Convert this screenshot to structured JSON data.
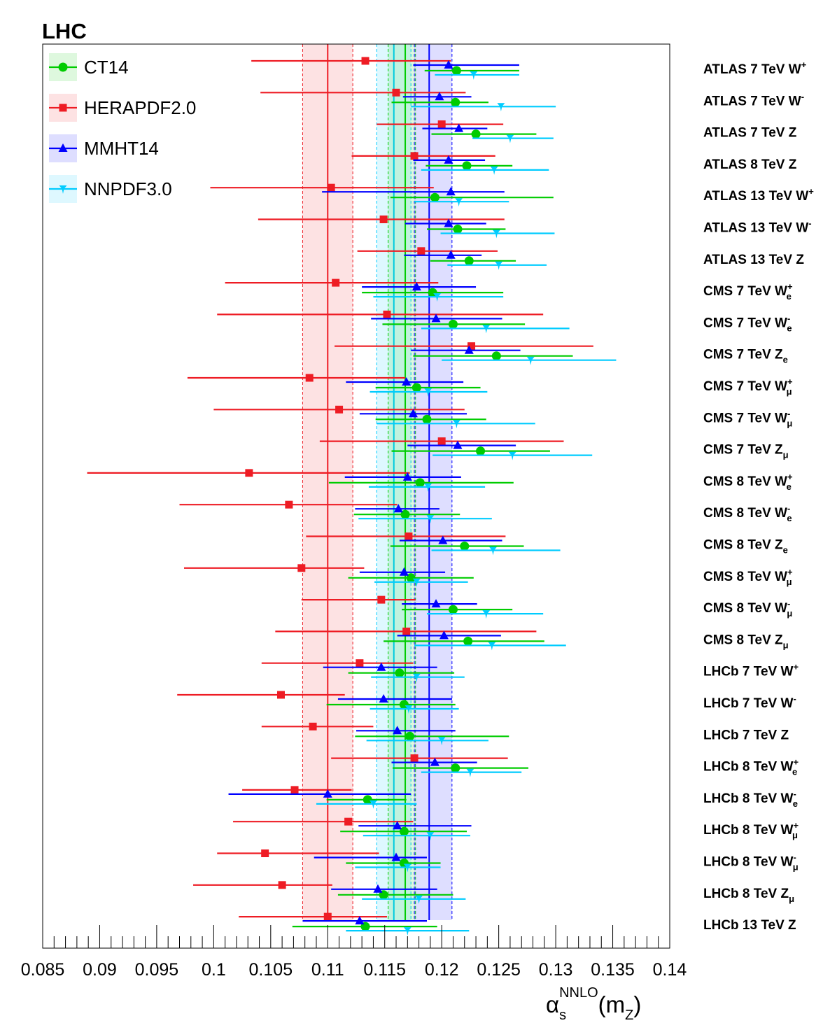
{
  "chart_data": {
    "type": "scatter",
    "title": "LHC",
    "xlabel": "α_s^NNLO(m_Z)",
    "xlabel_parts": {
      "symbol": "α",
      "sub": "s",
      "sup": "NNLO",
      "paren": "(m",
      "paren_sub": "Z",
      "close": ")"
    },
    "xlim": [
      0.085,
      0.14
    ],
    "xticks": [
      "0.085",
      "0.09",
      "0.095",
      "0.1",
      "0.105",
      "0.11",
      "0.115",
      "0.12",
      "0.125",
      "0.13",
      "0.135",
      "0.14"
    ],
    "legend_position": "top-left",
    "rows": [
      {
        "label": "ATLAS 7 TeV W",
        "sup": "+",
        "sub": ""
      },
      {
        "label": "ATLAS 7 TeV W",
        "sup": "-",
        "sub": ""
      },
      {
        "label": "ATLAS 7 TeV Z",
        "sup": "",
        "sub": ""
      },
      {
        "label": "ATLAS 8 TeV Z",
        "sup": "",
        "sub": ""
      },
      {
        "label": "ATLAS 13 TeV W",
        "sup": "+",
        "sub": ""
      },
      {
        "label": "ATLAS 13 TeV W",
        "sup": "-",
        "sub": ""
      },
      {
        "label": "ATLAS 13 TeV Z",
        "sup": "",
        "sub": ""
      },
      {
        "label": "CMS 7 TeV W",
        "sup": "+",
        "sub": "e"
      },
      {
        "label": "CMS 7 TeV W",
        "sup": "-",
        "sub": "e"
      },
      {
        "label": "CMS 7 TeV Z",
        "sup": "",
        "sub": "e"
      },
      {
        "label": "CMS 7 TeV W",
        "sup": "+",
        "sub": "μ"
      },
      {
        "label": "CMS 7 TeV W",
        "sup": "-",
        "sub": "μ"
      },
      {
        "label": "CMS 7 TeV Z",
        "sup": "",
        "sub": "μ"
      },
      {
        "label": "CMS 8 TeV W",
        "sup": "+",
        "sub": "e"
      },
      {
        "label": "CMS 8 TeV W",
        "sup": "-",
        "sub": "e"
      },
      {
        "label": "CMS 8 TeV Z",
        "sup": "",
        "sub": "e"
      },
      {
        "label": "CMS 8 TeV W",
        "sup": "+",
        "sub": "μ"
      },
      {
        "label": "CMS 8 TeV W",
        "sup": "-",
        "sub": "μ"
      },
      {
        "label": "CMS 8 TeV Z",
        "sup": "",
        "sub": "μ"
      },
      {
        "label": "LHCb 7 TeV W",
        "sup": "+",
        "sub": ""
      },
      {
        "label": "LHCb 7 TeV W",
        "sup": "-",
        "sub": ""
      },
      {
        "label": "LHCb 7 TeV Z",
        "sup": "",
        "sub": ""
      },
      {
        "label": "LHCb 8 TeV W",
        "sup": "+",
        "sub": "e"
      },
      {
        "label": "LHCb 8 TeV W",
        "sup": "-",
        "sub": "e"
      },
      {
        "label": "LHCb 8 TeV W",
        "sup": "+",
        "sub": "μ"
      },
      {
        "label": "LHCb 8 TeV W",
        "sup": "-",
        "sub": "μ"
      },
      {
        "label": "LHCb 8 TeV Z",
        "sup": "",
        "sub": "μ"
      },
      {
        "label": "LHCb 13 TeV Z",
        "sup": "",
        "sub": ""
      }
    ],
    "series": [
      {
        "name": "CT14",
        "color": "#00cc00",
        "marker": "circle",
        "band": {
          "center": 0.1168,
          "low": 0.1153,
          "high": 0.1177
        },
        "points": [
          [
            0.1213,
            0.1185,
            0.1268
          ],
          [
            0.1212,
            0.1156,
            0.1241
          ],
          [
            0.123,
            0.1191,
            0.1283
          ],
          [
            0.1222,
            0.1186,
            0.1262
          ],
          [
            0.1194,
            0.1155,
            0.1298
          ],
          [
            0.1214,
            0.1187,
            0.1256
          ],
          [
            0.1224,
            0.119,
            0.1265
          ],
          [
            0.1192,
            0.113,
            0.1254
          ],
          [
            0.121,
            0.1148,
            0.1273
          ],
          [
            0.1248,
            0.1175,
            0.1315
          ],
          [
            0.1178,
            0.1142,
            0.1234
          ],
          [
            0.1187,
            0.1142,
            0.1239
          ],
          [
            0.1234,
            0.1156,
            0.1295
          ],
          [
            0.1181,
            0.1101,
            0.1263
          ],
          [
            0.1168,
            0.1123,
            0.1216
          ],
          [
            0.122,
            0.1155,
            0.1272
          ],
          [
            0.1173,
            0.1118,
            0.1228
          ],
          [
            0.121,
            0.1165,
            0.1262
          ],
          [
            0.1223,
            0.1149,
            0.129
          ],
          [
            0.1163,
            0.1118,
            0.1211
          ],
          [
            0.1167,
            0.1099,
            0.1212
          ],
          [
            0.1172,
            0.1124,
            0.1259
          ],
          [
            0.1212,
            0.1157,
            0.1276
          ],
          [
            0.1135,
            0.1099,
            0.1169
          ],
          [
            0.1167,
            0.1111,
            0.1222
          ],
          [
            0.1167,
            0.1116,
            0.1199
          ],
          [
            0.1149,
            0.1109,
            0.121
          ],
          [
            0.1133,
            0.1069,
            0.1196
          ]
        ]
      },
      {
        "name": "HERAPDF2.0",
        "color": "#ee1c24",
        "marker": "square",
        "band": {
          "center": 0.11,
          "low": 0.1078,
          "high": 0.1122
        },
        "points": [
          [
            0.1133,
            0.1033,
            0.1208
          ],
          [
            0.116,
            0.1041,
            0.1221
          ],
          [
            0.12,
            0.1143,
            0.1254
          ],
          [
            0.1176,
            0.1121,
            0.1247
          ],
          [
            0.1103,
            0.0997,
            0.1193
          ],
          [
            0.1149,
            0.1039,
            0.1255
          ],
          [
            0.1182,
            0.1126,
            0.1249
          ],
          [
            0.1107,
            0.101,
            0.1197
          ],
          [
            0.1152,
            0.1003,
            0.1289
          ],
          [
            0.1226,
            0.1106,
            0.1333
          ],
          [
            0.1084,
            0.0977,
            0.1168
          ],
          [
            0.111,
            0.1,
            0.122
          ],
          [
            0.12,
            0.1093,
            0.1307
          ],
          [
            0.1031,
            0.0889,
            0.1172
          ],
          [
            0.1066,
            0.097,
            0.1161
          ],
          [
            0.1171,
            0.1081,
            0.1256
          ],
          [
            0.1077,
            0.0974,
            0.1132
          ],
          [
            0.1147,
            0.1077,
            0.1177
          ],
          [
            0.1169,
            0.1054,
            0.1283
          ],
          [
            0.1128,
            0.1042,
            0.1175
          ],
          [
            0.1059,
            0.0968,
            0.1115
          ],
          [
            0.1087,
            0.1042,
            0.114
          ],
          [
            0.1176,
            0.1103,
            0.1258
          ],
          [
            0.1071,
            0.1025,
            0.1121
          ],
          [
            0.1118,
            0.1017,
            0.1175
          ],
          [
            0.1045,
            0.1003,
            0.1145
          ],
          [
            0.106,
            0.0982,
            0.1104
          ],
          [
            0.11,
            0.1022,
            0.1152
          ]
        ]
      },
      {
        "name": "MMHT14",
        "color": "#0000ff",
        "marker": "triangle",
        "band": {
          "center": 0.1189,
          "low": 0.1176,
          "high": 0.1209
        },
        "points": [
          [
            0.1206,
            0.1175,
            0.1268
          ],
          [
            0.1198,
            0.1166,
            0.1226
          ],
          [
            0.1215,
            0.1183,
            0.124
          ],
          [
            0.1206,
            0.1175,
            0.1238
          ],
          [
            0.1208,
            0.1095,
            0.1255
          ],
          [
            0.1206,
            0.1168,
            0.1239
          ],
          [
            0.1208,
            0.1167,
            0.1235
          ],
          [
            0.1178,
            0.113,
            0.123
          ],
          [
            0.1195,
            0.1138,
            0.1253
          ],
          [
            0.1224,
            0.1173,
            0.1269
          ],
          [
            0.1169,
            0.1116,
            0.1219
          ],
          [
            0.1175,
            0.1128,
            0.1222
          ],
          [
            0.1214,
            0.117,
            0.1265
          ],
          [
            0.117,
            0.1115,
            0.1217
          ],
          [
            0.1162,
            0.1124,
            0.1198
          ],
          [
            0.1201,
            0.1163,
            0.1253
          ],
          [
            0.1167,
            0.1128,
            0.1203
          ],
          [
            0.1195,
            0.1165,
            0.1231
          ],
          [
            0.1202,
            0.1161,
            0.1252
          ],
          [
            0.1147,
            0.1096,
            0.1196
          ],
          [
            0.1149,
            0.1109,
            0.1209
          ],
          [
            0.1161,
            0.1125,
            0.1212
          ],
          [
            0.1194,
            0.1156,
            0.1231
          ],
          [
            0.11,
            0.1013,
            0.1173
          ],
          [
            0.1161,
            0.1127,
            0.1226
          ],
          [
            0.116,
            0.1088,
            0.1187
          ],
          [
            0.1144,
            0.1103,
            0.1196
          ],
          [
            0.1128,
            0.1078,
            0.1187
          ]
        ]
      },
      {
        "name": "NNPDF3.0",
        "color": "#00ccff",
        "marker": "star",
        "band": {
          "center": 0.1158,
          "low": 0.1143,
          "high": 0.1173
        },
        "points": [
          [
            0.1228,
            0.1194,
            0.1268
          ],
          [
            0.1252,
            0.1173,
            0.13
          ],
          [
            0.126,
            0.1227,
            0.1298
          ],
          [
            0.1246,
            0.1182,
            0.1294
          ],
          [
            0.1215,
            0.1176,
            0.1259
          ],
          [
            0.1248,
            0.1199,
            0.1299
          ],
          [
            0.125,
            0.1205,
            0.1292
          ],
          [
            0.1196,
            0.114,
            0.1254
          ],
          [
            0.1239,
            0.1182,
            0.1312
          ],
          [
            0.1278,
            0.12,
            0.1353
          ],
          [
            0.1188,
            0.1137,
            0.124
          ],
          [
            0.1213,
            0.1143,
            0.1282
          ],
          [
            0.1262,
            0.1192,
            0.1332
          ],
          [
            0.1188,
            0.1136,
            0.1238
          ],
          [
            0.119,
            0.1127,
            0.1244
          ],
          [
            0.1245,
            0.1191,
            0.1304
          ],
          [
            0.1178,
            0.1141,
            0.1223
          ],
          [
            0.1239,
            0.1187,
            0.1289
          ],
          [
            0.1244,
            0.1176,
            0.1309
          ],
          [
            0.1178,
            0.1138,
            0.122
          ],
          [
            0.1171,
            0.1137,
            0.1215
          ],
          [
            0.12,
            0.1134,
            0.1241
          ],
          [
            0.1225,
            0.1182,
            0.127
          ],
          [
            0.114,
            0.109,
            0.1178
          ],
          [
            0.119,
            0.1131,
            0.1225
          ],
          [
            0.117,
            0.1124,
            0.1199
          ],
          [
            0.118,
            0.113,
            0.1221
          ],
          [
            0.117,
            0.1116,
            0.1224
          ]
        ]
      }
    ]
  }
}
